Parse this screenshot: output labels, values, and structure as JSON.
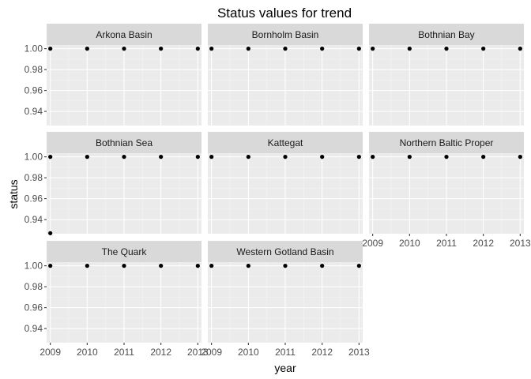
{
  "chart_data": {
    "type": "scatter",
    "title": "Status values for trend",
    "xlabel": "year",
    "ylabel": "status",
    "x_ticks": [
      2009,
      2010,
      2011,
      2012,
      2013
    ],
    "y_ticks": [
      "0.94",
      "0.96",
      "0.98",
      "1.00"
    ],
    "xlim": [
      2008.9,
      2013.1
    ],
    "ylim": [
      0.9265,
      1.0035
    ],
    "grid": true,
    "facets": [
      {
        "name": "Arkona Basin",
        "x": [
          2009,
          2010,
          2011,
          2012,
          2013
        ],
        "y": [
          1.0,
          1.0,
          1.0,
          1.0,
          1.0
        ]
      },
      {
        "name": "Bornholm Basin",
        "x": [
          2009,
          2010,
          2011,
          2012,
          2013
        ],
        "y": [
          1.0,
          1.0,
          1.0,
          1.0,
          1.0
        ]
      },
      {
        "name": "Bothnian Bay",
        "x": [
          2009,
          2010,
          2011,
          2012,
          2013
        ],
        "y": [
          1.0,
          1.0,
          1.0,
          1.0,
          1.0
        ]
      },
      {
        "name": "Bothnian Sea",
        "x": [
          2009,
          2009,
          2010,
          2011,
          2012,
          2013
        ],
        "y": [
          1.0,
          0.927,
          1.0,
          1.0,
          1.0,
          1.0
        ]
      },
      {
        "name": "Kattegat",
        "x": [
          2009,
          2010,
          2011,
          2012,
          2013
        ],
        "y": [
          1.0,
          1.0,
          1.0,
          1.0,
          1.0
        ]
      },
      {
        "name": "Northern Baltic Proper",
        "x": [
          2009,
          2010,
          2011,
          2012,
          2013
        ],
        "y": [
          1.0,
          1.0,
          1.0,
          1.0,
          1.0
        ]
      },
      {
        "name": "The Quark",
        "x": [
          2009,
          2010,
          2011,
          2012,
          2013
        ],
        "y": [
          1.0,
          1.0,
          1.0,
          1.0,
          1.0
        ]
      },
      {
        "name": "Western Gotland Basin",
        "x": [
          2009,
          2010,
          2011,
          2012,
          2013
        ],
        "y": [
          1.0,
          1.0,
          1.0,
          1.0,
          1.0
        ]
      }
    ]
  }
}
